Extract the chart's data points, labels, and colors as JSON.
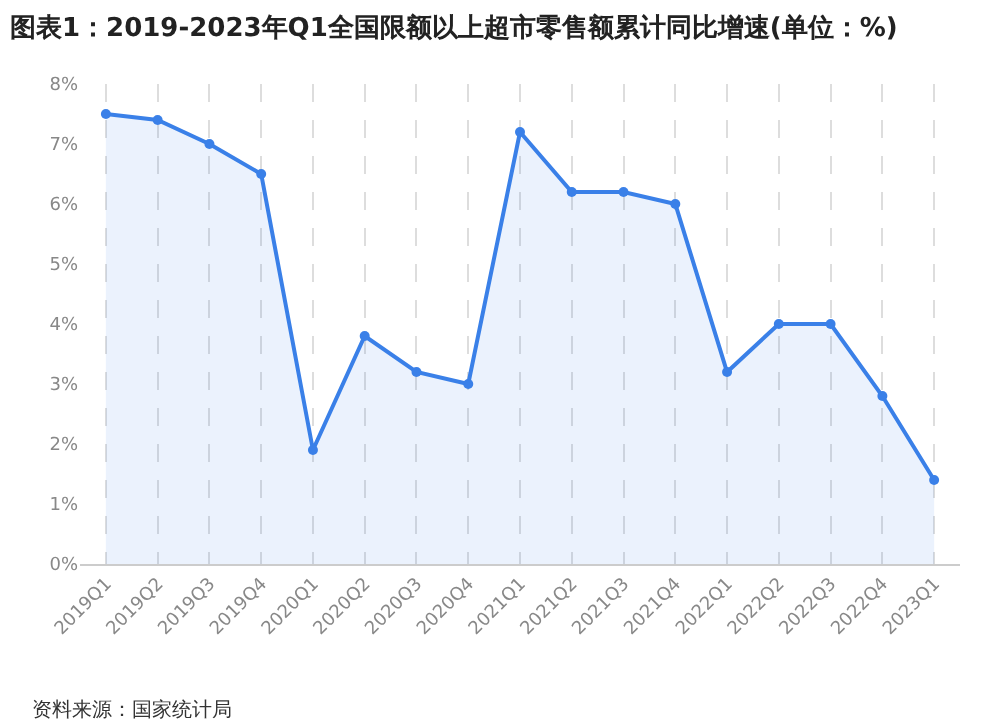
{
  "chart_data": {
    "type": "area",
    "title": "图表1：2019-2023年Q1全国限额以上超市零售额累计同比增速(单位：%)",
    "categories": [
      "2019Q1",
      "2019Q2",
      "2019Q3",
      "2019Q4",
      "2020Q1",
      "2020Q2",
      "2020Q3",
      "2020Q4",
      "2021Q1",
      "2021Q2",
      "2021Q3",
      "2021Q4",
      "2022Q1",
      "2022Q2",
      "2022Q3",
      "2022Q4",
      "2023Q1"
    ],
    "series": [
      {
        "color": "#3a80e8",
        "values": [
          7.5,
          7.4,
          7.0,
          6.5,
          1.9,
          3.8,
          3.2,
          3.0,
          7.2,
          6.2,
          6.2,
          6.0,
          3.2,
          4.0,
          4.0,
          2.8,
          1.4
        ]
      }
    ],
    "ylim": [
      0,
      8
    ],
    "yticks": [
      {
        "value": 0,
        "label": "0%"
      },
      {
        "value": 1,
        "label": "1%"
      },
      {
        "value": 2,
        "label": "2%"
      },
      {
        "value": 3,
        "label": "3%"
      },
      {
        "value": 4,
        "label": "4%"
      },
      {
        "value": 5,
        "label": "5%"
      },
      {
        "value": 6,
        "label": "6%"
      },
      {
        "value": 7,
        "label": "7%"
      },
      {
        "value": 8,
        "label": "8%"
      }
    ],
    "grid": "x",
    "marker": "circle",
    "line_style": "solid",
    "annotations": [
      "资料来源：国家统计局"
    ]
  }
}
